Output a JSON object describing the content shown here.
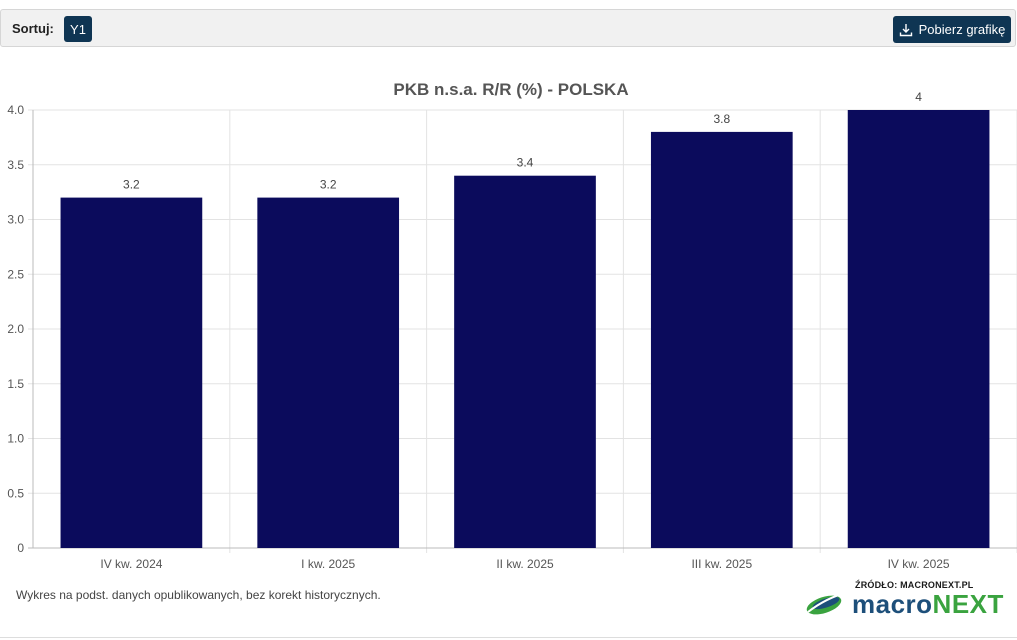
{
  "toolbar": {
    "sort_label": "Sortuj:",
    "sort_option": "Y1",
    "download_label": "Pobierz grafikę"
  },
  "chart_data": {
    "type": "bar",
    "title": "PKB n.s.a. R/R (%) - POLSKA",
    "categories": [
      "IV kw. 2024",
      "I kw. 2025",
      "II kw. 2025",
      "III kw. 2025",
      "IV kw. 2025"
    ],
    "values": [
      3.2,
      3.2,
      3.4,
      3.8,
      4
    ],
    "value_labels": [
      "3.2",
      "3.2",
      "3.4",
      "3.8",
      "4"
    ],
    "yticks": [
      "0",
      "0.5",
      "1.0",
      "1.5",
      "2.0",
      "2.5",
      "3.0",
      "3.5",
      "4.0"
    ],
    "ylim": [
      0,
      4
    ],
    "grid": true,
    "bar_color": "#0b0b5c"
  },
  "footer": {
    "note": "Wykres na podst. danych opublikowanych, bez korekt historycznych.",
    "source": "ŹRÓDŁO: MACRONEXT.PL",
    "logo_part1": "macro",
    "logo_part2": "NEXT"
  }
}
